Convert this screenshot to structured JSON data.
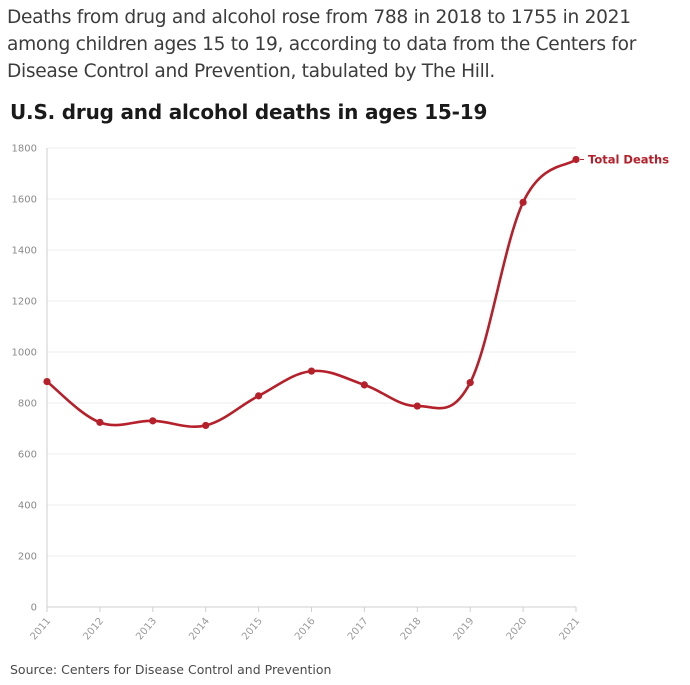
{
  "intro_text": "Deaths from drug and alcohol rose from 788 in 2018 to 1755 in 2021 among children ages 15 to 19, according to data from the Centers for Disease Control and Prevention, tabulated by The Hill.",
  "source_text": "Source: Centers for Disease Control and Prevention",
  "colors": {
    "series": "#b5202b",
    "grid": "#ececec",
    "axis": "#cfcfcf"
  },
  "chart_data": {
    "type": "line",
    "title": "U.S. drug and alcohol deaths in ages 15-19",
    "xlabel": "",
    "ylabel": "",
    "x": [
      "2011",
      "2012",
      "2013",
      "2014",
      "2015",
      "2016",
      "2017",
      "2018",
      "2019",
      "2020",
      "2021"
    ],
    "series": [
      {
        "name": "Total Deaths",
        "values": [
          884,
          724,
          730,
          712,
          828,
          925,
          871,
          788,
          880,
          1587,
          1755
        ]
      }
    ],
    "ylim": [
      0,
      1800
    ],
    "yticks": [
      "0",
      "200",
      "400",
      "600",
      "800",
      "1000",
      "1200",
      "1400",
      "1600",
      "1800"
    ],
    "grid": true,
    "legend": "end-of-line label"
  }
}
